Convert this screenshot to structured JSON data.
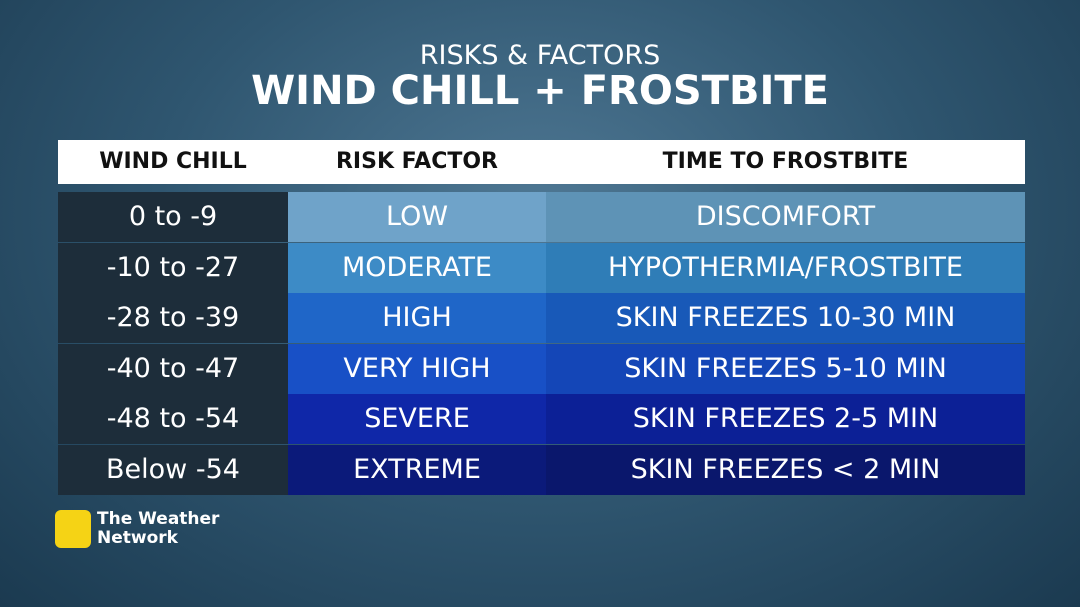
{
  "header": {
    "subtitle": "RISKS & FACTORS",
    "title": "WIND CHILL + FROSTBITE"
  },
  "table": {
    "columns": [
      "WIND CHILL",
      "RISK FACTOR",
      "TIME TO FROSTBITE"
    ],
    "rows": [
      [
        "0 to -9",
        "LOW",
        "DISCOMFORT"
      ],
      [
        "-10 to -27",
        "MODERATE",
        "HYPOTHERMIA/FROSTBITE"
      ],
      [
        "-28 to -39",
        "HIGH",
        "SKIN FREEZES 10-30 MIN"
      ],
      [
        "-40 to -47",
        "VERY HIGH",
        "SKIN FREEZES 5-10 MIN"
      ],
      [
        "-48 to -54",
        "SEVERE",
        "SKIN FREEZES 2-5 MIN"
      ],
      [
        "Below -54",
        "EXTREME",
        "SKIN FREEZES < 2 MIN"
      ]
    ]
  },
  "logo": {
    "line1": "The Weather",
    "line2": "Network"
  }
}
